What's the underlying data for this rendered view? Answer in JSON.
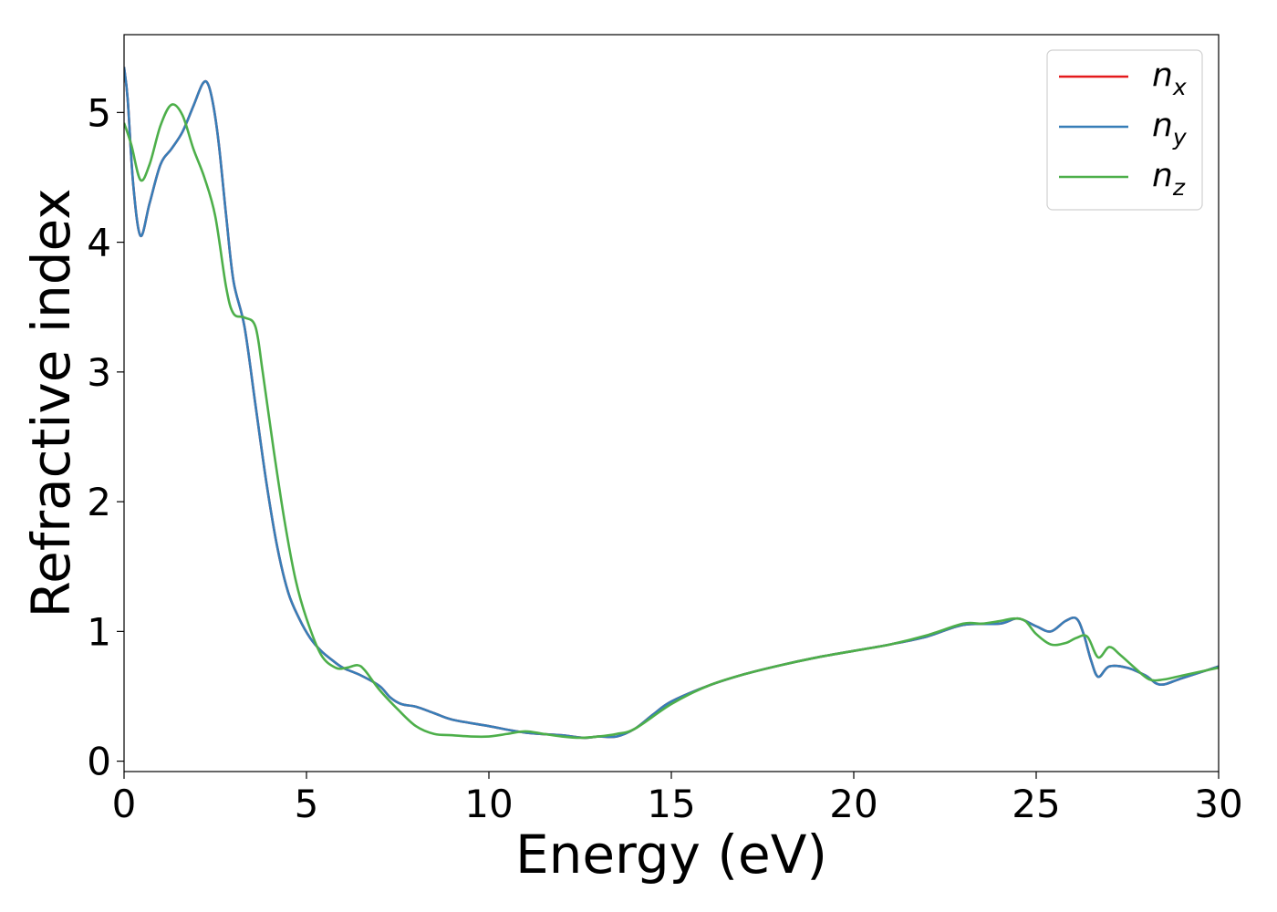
{
  "chart_data": {
    "type": "line",
    "xlabel": "Energy (eV)",
    "ylabel": "Refractive index",
    "xlim": [
      0,
      30
    ],
    "ylim": [
      -0.08,
      5.6
    ],
    "xticks": [
      "0",
      "5",
      "10",
      "15",
      "20",
      "25",
      "30"
    ],
    "yticks": [
      "0",
      "1",
      "2",
      "3",
      "4",
      "5"
    ],
    "grid": false,
    "legend_position": "top-right",
    "series": [
      {
        "name": "n",
        "subscript": "x",
        "color": "#e41a1c",
        "x": [
          0,
          0.1,
          0.25,
          0.45,
          0.7,
          1.0,
          1.3,
          1.6,
          1.9,
          2.15,
          2.3,
          2.45,
          2.6,
          2.8,
          3.0,
          3.3,
          3.6,
          3.9,
          4.2,
          4.5,
          4.8,
          5.1,
          5.4,
          5.7,
          6.0,
          6.5,
          7.0,
          7.3,
          7.6,
          8.0,
          8.5,
          9.0,
          10.0,
          11.0,
          12.0,
          12.6,
          13.0,
          13.5,
          14.0,
          14.5,
          15.0,
          16.0,
          17.0,
          18.0,
          19.0,
          20.0,
          21.0,
          22.0,
          23.0,
          24.0,
          24.5,
          25.0,
          25.4,
          25.8,
          26.1,
          26.3,
          26.5,
          26.7,
          27.0,
          27.5,
          28.0,
          28.4,
          29.0,
          30.0
        ],
        "values": [
          5.35,
          5.1,
          4.45,
          4.05,
          4.3,
          4.6,
          4.72,
          4.85,
          5.05,
          5.22,
          5.22,
          5.05,
          4.75,
          4.2,
          3.7,
          3.35,
          2.75,
          2.15,
          1.65,
          1.3,
          1.1,
          0.95,
          0.85,
          0.78,
          0.72,
          0.66,
          0.58,
          0.49,
          0.44,
          0.42,
          0.37,
          0.32,
          0.27,
          0.22,
          0.2,
          0.18,
          0.19,
          0.19,
          0.25,
          0.36,
          0.46,
          0.58,
          0.67,
          0.74,
          0.8,
          0.85,
          0.9,
          0.96,
          1.05,
          1.06,
          1.1,
          1.04,
          1.0,
          1.08,
          1.1,
          0.98,
          0.78,
          0.65,
          0.73,
          0.72,
          0.66,
          0.59,
          0.64,
          0.73
        ]
      },
      {
        "name": "n",
        "subscript": "y",
        "color": "#377eb8",
        "x": [
          0,
          0.1,
          0.25,
          0.45,
          0.7,
          1.0,
          1.3,
          1.6,
          1.9,
          2.15,
          2.3,
          2.45,
          2.6,
          2.8,
          3.0,
          3.3,
          3.6,
          3.9,
          4.2,
          4.5,
          4.8,
          5.1,
          5.4,
          5.7,
          6.0,
          6.5,
          7.0,
          7.3,
          7.6,
          8.0,
          8.5,
          9.0,
          10.0,
          11.0,
          12.0,
          12.6,
          13.0,
          13.5,
          14.0,
          14.5,
          15.0,
          16.0,
          17.0,
          18.0,
          19.0,
          20.0,
          21.0,
          22.0,
          23.0,
          24.0,
          24.5,
          25.0,
          25.4,
          25.8,
          26.1,
          26.3,
          26.5,
          26.7,
          27.0,
          27.5,
          28.0,
          28.4,
          29.0,
          30.0
        ],
        "values": [
          5.35,
          5.1,
          4.45,
          4.05,
          4.3,
          4.6,
          4.72,
          4.85,
          5.05,
          5.22,
          5.22,
          5.05,
          4.75,
          4.2,
          3.7,
          3.35,
          2.75,
          2.15,
          1.65,
          1.3,
          1.1,
          0.95,
          0.85,
          0.78,
          0.72,
          0.66,
          0.58,
          0.49,
          0.44,
          0.42,
          0.37,
          0.32,
          0.27,
          0.22,
          0.2,
          0.18,
          0.19,
          0.19,
          0.25,
          0.36,
          0.46,
          0.58,
          0.67,
          0.74,
          0.8,
          0.85,
          0.9,
          0.96,
          1.05,
          1.06,
          1.1,
          1.04,
          1.0,
          1.08,
          1.1,
          0.98,
          0.78,
          0.65,
          0.73,
          0.72,
          0.66,
          0.59,
          0.64,
          0.73
        ]
      },
      {
        "name": "n",
        "subscript": "z",
        "color": "#4daf4a",
        "x": [
          0,
          0.2,
          0.45,
          0.7,
          1.0,
          1.3,
          1.6,
          1.9,
          2.2,
          2.5,
          2.8,
          3.0,
          3.3,
          3.6,
          3.8,
          4.1,
          4.4,
          4.7,
          5.0,
          5.4,
          5.8,
          6.1,
          6.4,
          6.6,
          7.0,
          7.5,
          8.0,
          8.5,
          9.0,
          9.5,
          10.0,
          10.5,
          11.0,
          11.5,
          12.0,
          12.5,
          13.0,
          13.5,
          14.0,
          15.0,
          16.0,
          17.0,
          18.0,
          19.0,
          20.0,
          21.0,
          22.0,
          23.0,
          23.5,
          24.0,
          24.4,
          24.7,
          25.0,
          25.4,
          25.8,
          26.1,
          26.4,
          26.7,
          27.0,
          27.3,
          27.7,
          28.1,
          28.5,
          29.0,
          30.0
        ],
        "values": [
          4.92,
          4.75,
          4.48,
          4.6,
          4.9,
          5.06,
          4.98,
          4.72,
          4.5,
          4.2,
          3.65,
          3.45,
          3.42,
          3.35,
          3.0,
          2.4,
          1.85,
          1.4,
          1.1,
          0.82,
          0.72,
          0.72,
          0.74,
          0.7,
          0.55,
          0.4,
          0.27,
          0.21,
          0.2,
          0.19,
          0.19,
          0.21,
          0.23,
          0.21,
          0.19,
          0.18,
          0.19,
          0.21,
          0.25,
          0.44,
          0.58,
          0.67,
          0.74,
          0.8,
          0.85,
          0.9,
          0.97,
          1.06,
          1.06,
          1.08,
          1.1,
          1.08,
          0.98,
          0.9,
          0.91,
          0.95,
          0.96,
          0.8,
          0.88,
          0.82,
          0.72,
          0.63,
          0.63,
          0.66,
          0.72
        ]
      }
    ]
  }
}
